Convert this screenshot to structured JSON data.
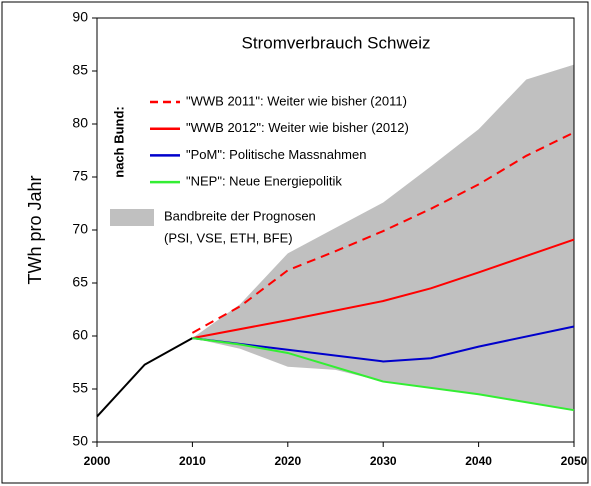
{
  "chart_data": {
    "type": "line",
    "title": "Stromverbrauch Schweiz",
    "ylabel": "TWh pro Jahr",
    "xlim": [
      2000,
      2050
    ],
    "ylim": [
      50,
      90
    ],
    "xticks": [
      2000,
      2010,
      2020,
      2030,
      2040,
      2050
    ],
    "yticks": [
      50,
      55,
      60,
      65,
      70,
      75,
      80,
      85,
      90
    ],
    "grid": false,
    "legend_annotation": "nach Bund:",
    "band": {
      "name": "Bandbreite der Prognosen",
      "subname": "(PSI, VSE, ETH, BFE)",
      "color": "#c0c0c0",
      "x": [
        2010,
        2015,
        2020,
        2025,
        2030,
        2035,
        2040,
        2045,
        2050
      ],
      "upper": [
        59.8,
        63.0,
        67.8,
        70.2,
        72.6,
        76.0,
        79.5,
        84.2,
        85.6
      ],
      "lower": [
        59.8,
        58.8,
        57.1,
        56.8,
        55.7,
        55.1,
        54.5,
        53.8,
        53.0
      ]
    },
    "series": [
      {
        "color": "#000000",
        "x": [
          2000,
          2005,
          2010
        ],
        "values": [
          52.4,
          57.3,
          59.8
        ]
      },
      {
        "name": "\"WWB 2011\": Weiter wie bisher (2011)",
        "color": "#ff0000",
        "dash": true,
        "x": [
          2010,
          2015,
          2020,
          2025,
          2030,
          2035,
          2040,
          2045,
          2050
        ],
        "values": [
          60.3,
          62.8,
          66.2,
          68.0,
          69.9,
          72.0,
          74.3,
          77.0,
          79.2
        ]
      },
      {
        "name": "\"WWB 2012\": Weiter wie bisher (2012)",
        "color": "#ff0000",
        "x": [
          2010,
          2020,
          2030,
          2035,
          2040,
          2050
        ],
        "values": [
          59.8,
          61.5,
          63.3,
          64.5,
          66.0,
          69.1
        ]
      },
      {
        "name": "\"PoM\": Politische Massnahmen",
        "color": "#0000cc",
        "x": [
          2010,
          2020,
          2030,
          2035,
          2040,
          2050
        ],
        "values": [
          59.8,
          58.7,
          57.6,
          57.9,
          59.0,
          60.9
        ]
      },
      {
        "name": "\"NEP\": Neue Energiepolitik",
        "color": "#33ee33",
        "x": [
          2010,
          2015,
          2020,
          2030,
          2040,
          2050
        ],
        "values": [
          59.8,
          59.2,
          58.4,
          55.7,
          54.5,
          53.0
        ]
      }
    ]
  }
}
